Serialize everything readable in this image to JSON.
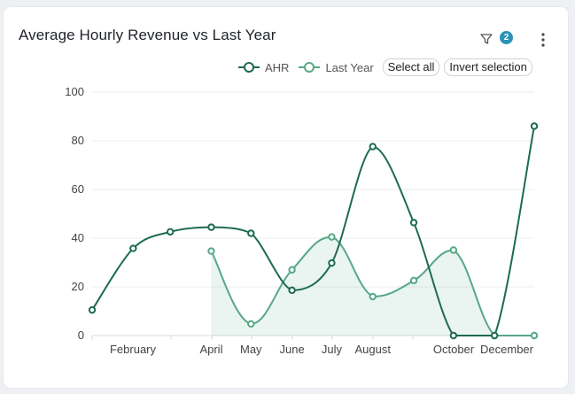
{
  "header": {
    "title": "Average Hourly Revenue vs Last Year",
    "filter_count": "2"
  },
  "legend": {
    "items": [
      {
        "label": "AHR",
        "color": "#1d6b4f"
      },
      {
        "label": "Last Year",
        "color": "#56a887"
      }
    ],
    "select_all_label": "Select all",
    "invert_label": "Invert selection"
  },
  "chart_data": {
    "type": "line",
    "title": "Average Hourly Revenue vs Last Year",
    "xlabel": "",
    "ylabel": "",
    "ylim": [
      0,
      100
    ],
    "yticks": [
      0,
      20,
      40,
      60,
      80,
      100
    ],
    "x_tick_labels": [
      "February",
      "April",
      "May",
      "June",
      "July",
      "August",
      "October",
      "December"
    ],
    "grid": "horizontal",
    "legend_position": "top-right",
    "series": [
      {
        "name": "AHR",
        "color": "#1d6b4f",
        "points": [
          {
            "x": "2023-01-01",
            "y": 10.5
          },
          {
            "x": "2023-02-01",
            "y": 35.8
          },
          {
            "x": "2023-03-01",
            "y": 42.6
          },
          {
            "x": "2023-04-01",
            "y": 44.5
          },
          {
            "x": "2023-05-01",
            "y": 42.0
          },
          {
            "x": "2023-06-01",
            "y": 18.6
          },
          {
            "x": "2023-07-01",
            "y": 29.8
          },
          {
            "x": "2023-08-01",
            "y": 77.6
          },
          {
            "x": "2023-09-01",
            "y": 46.4
          },
          {
            "x": "2023-10-01",
            "y": 0
          },
          {
            "x": "2023-11-01",
            "y": 0
          },
          {
            "x": "2023-12-01",
            "y": 86.0
          }
        ]
      },
      {
        "name": "Last Year",
        "color": "#56a887",
        "area": true,
        "points": [
          {
            "x": "2023-04-01",
            "y": 34.7
          },
          {
            "x": "2023-05-01",
            "y": 4.8
          },
          {
            "x": "2023-06-01",
            "y": 27.0
          },
          {
            "x": "2023-07-01",
            "y": 40.5
          },
          {
            "x": "2023-08-01",
            "y": 16.0
          },
          {
            "x": "2023-09-01",
            "y": 22.6
          },
          {
            "x": "2023-10-01",
            "y": 35.1
          },
          {
            "x": "2023-11-01",
            "y": 0
          },
          {
            "x": "2023-12-01",
            "y": 0
          }
        ]
      }
    ]
  }
}
